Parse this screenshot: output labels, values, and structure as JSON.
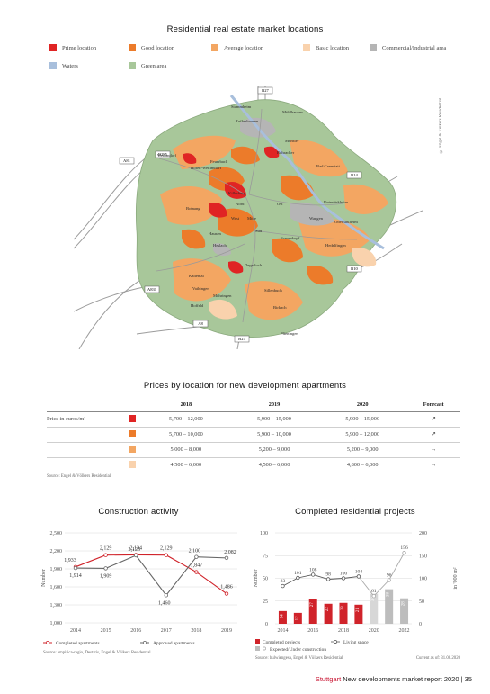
{
  "map": {
    "title": "Residential real estate market locations",
    "copyright": "© Engel & Völkers Residential",
    "legend": [
      {
        "label": "Prime location",
        "color": "#e02424"
      },
      {
        "label": "Good location",
        "color": "#ec7b2a"
      },
      {
        "label": "Average location",
        "color": "#f3a662"
      },
      {
        "label": "Basic location",
        "color": "#f9d2ad"
      },
      {
        "label": "Commercial/Industrial area",
        "color": "#b5b5b5"
      },
      {
        "label": "Waters",
        "color": "#a8bfdc"
      },
      {
        "label": "Green area",
        "color": "#a8c79a"
      }
    ],
    "roads": [
      "B27",
      "B295",
      "A81",
      "B14",
      "B10",
      "A831",
      "A8",
      "B27"
    ],
    "places": [
      "Stammheim",
      "Mühlhausen",
      "Zuffenhausen",
      "Münster",
      "Weilimdorf",
      "Feuerbach",
      "Bad Cannstatt",
      "Hofen-Weilimdorf",
      "Botnang",
      "Killesberg",
      "Nord",
      "Untertürkheim",
      "Mitte",
      "Wangen",
      "West",
      "Obertürkheim",
      "Süd",
      "Ost",
      "Heslach",
      "Frauenkopf",
      "Hedelfingen",
      "Kaltental",
      "Vaihingen",
      "Degerloch",
      "Möhringen",
      "Sillenbuch",
      "Plieningen",
      "Birkach",
      "Rohracker",
      "Hoffeld",
      "Hausen"
    ]
  },
  "prices": {
    "title": "Prices by location for new development apartments",
    "headers": [
      "",
      "",
      "2018",
      "2019",
      "2020",
      "Forecast"
    ],
    "row_label": "Price in euros/m²",
    "rows": [
      {
        "color": "#e02424",
        "y2018": "5,700 – 12,000",
        "y2019": "5,900 – 15,000",
        "y2020": "5,900 – 15,000",
        "forecast": "↗"
      },
      {
        "color": "#ec7b2a",
        "y2018": "5,700 – 10,000",
        "y2019": "5,900 – 10,000",
        "y2020": "5,900 – 12,000",
        "forecast": "↗"
      },
      {
        "color": "#f3a662",
        "y2018": "5,000 – 8,000",
        "y2019": "5,200 – 9,000",
        "y2020": "5,200 – 9,000",
        "forecast": "→"
      },
      {
        "color": "#f9d2ad",
        "y2018": "4,500 – 6,000",
        "y2019": "4,500 – 6,000",
        "y2020": "4,800 – 6,000",
        "forecast": "→"
      }
    ],
    "source": "Source: Engel & Völkers Residential"
  },
  "chart_data": [
    {
      "type": "line",
      "title": "Construction activity",
      "ylabel": "Number",
      "x": [
        "2014",
        "2015",
        "2016",
        "2017",
        "2018",
        "2019"
      ],
      "ylim": [
        1000,
        2500
      ],
      "yticks": [
        "1,000",
        "1,300",
        "1,600",
        "1,900",
        "2,200",
        "2,500"
      ],
      "series": [
        {
          "name": "Completed apartments",
          "values": [
            1933,
            2129,
            2134,
            2129,
            1847,
            1486
          ],
          "labels": [
            "1,933",
            "2,129",
            "2,134",
            "2,129",
            "1,847",
            "1,486"
          ],
          "color": "#d0232a"
        },
        {
          "name": "Approved apartments",
          "values": [
            1914,
            1909,
            2125,
            1460,
            2100,
            2082
          ],
          "labels": [
            "1,914",
            "1,909",
            "2,125",
            "1,460",
            "2,100",
            "2,082"
          ],
          "color": "#666666"
        }
      ],
      "source": "Source: empirica-regio, Destatis, Engel & Völkers Residential"
    },
    {
      "type": "bar",
      "title": "Completed residential projects",
      "ylabel": "Number",
      "y2label": "in '000 m²",
      "categories": [
        "2014",
        "2015",
        "2016",
        "2017",
        "2018",
        "2019",
        "2020",
        "2021",
        "2022"
      ],
      "xticks": [
        "2014",
        "2016",
        "2018",
        "2020",
        "2022"
      ],
      "ylim": [
        0,
        100
      ],
      "yticks": [
        "0",
        "25",
        "50",
        "75",
        "100"
      ],
      "y2lim": [
        0,
        200
      ],
      "y2ticks": [
        "0",
        "50",
        "100",
        "150",
        "200"
      ],
      "series": [
        {
          "name": "Completed projects",
          "values": [
            14,
            12,
            27,
            22,
            23,
            21,
            33,
            38,
            28
          ],
          "labels": [
            "14",
            "12",
            "27",
            "22",
            "23",
            "21",
            "33",
            "38",
            "28"
          ],
          "color": "#d0232a"
        },
        {
          "name": "Living space",
          "values": [
            83,
            101,
            108,
            98,
            100,
            104,
            61,
            96,
            156
          ],
          "labels": [
            "83",
            "101",
            "108",
            "98",
            "100",
            "104",
            "61",
            "96",
            "156"
          ],
          "color": "#555555"
        }
      ],
      "legend": [
        "Completed projects",
        "Living space",
        "Expected/Under construction"
      ],
      "source": "Source: bulwiengesa, Engel & Völkers Residential",
      "current": "Current as of: 31.08.2020"
    }
  ],
  "footer": {
    "brand": "Stuttgart",
    "text": "New developments market report 2020",
    "sep": "|",
    "page": "35"
  }
}
